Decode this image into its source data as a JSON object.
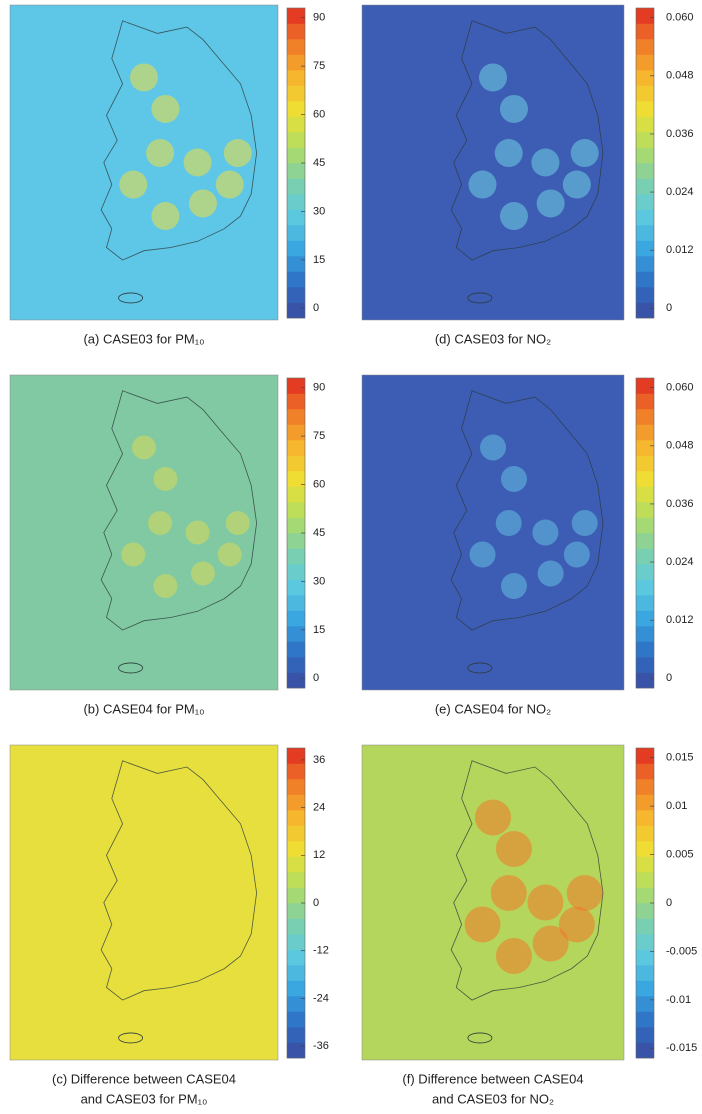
{
  "panels": [
    {
      "caption": [
        "(a) CASE03 for PM₁₀"
      ],
      "clim": [
        -3,
        93
      ],
      "ticks": [
        0,
        15,
        30,
        45,
        60,
        75,
        90
      ]
    },
    {
      "caption": [
        "(d) CASE03 for NO₂"
      ],
      "clim": [
        -0.002,
        0.062
      ],
      "ticks": [
        0,
        0.012,
        0.024,
        0.036,
        0.048,
        {
          "value": 0.06,
          "label": "0.060"
        }
      ]
    },
    {
      "caption": [
        "(b) CASE04 for PM₁₀"
      ],
      "clim": [
        -3,
        93
      ],
      "ticks": [
        0,
        15,
        30,
        45,
        60,
        75,
        90
      ]
    },
    {
      "caption": [
        "(e) CASE04 for NO₂"
      ],
      "clim": [
        -0.002,
        0.062
      ],
      "ticks": [
        0,
        0.012,
        0.024,
        0.036,
        0.048,
        {
          "value": 0.06,
          "label": "0.060"
        }
      ]
    },
    {
      "caption": [
        "(c) Difference between CASE04",
        "and CASE03 for PM₁₀"
      ],
      "clim": [
        -39,
        39
      ],
      "ticks": [
        -36,
        -24,
        -12,
        0,
        12,
        24,
        36
      ]
    },
    {
      "caption": [
        "(f) Difference between CASE04",
        "and CASE03 for NO₂"
      ],
      "clim": [
        -0.016,
        0.016
      ],
      "ticks": [
        -0.015,
        -0.01,
        -0.005,
        0,
        0.005,
        0.01,
        0.015
      ]
    }
  ]
}
